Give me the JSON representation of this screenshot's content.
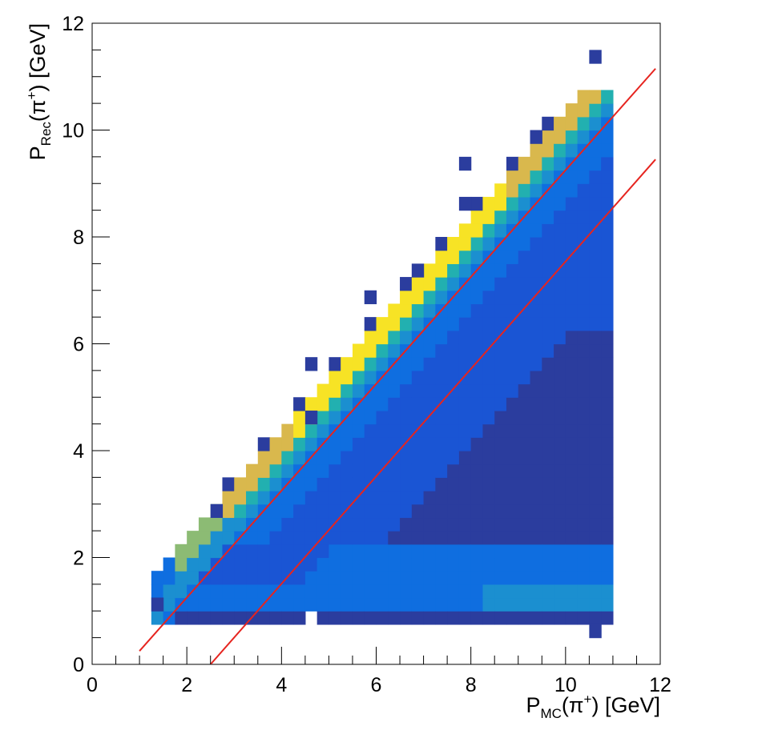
{
  "chart_data": {
    "type": "heatmap",
    "title": "",
    "xlabel": {
      "base": "P",
      "sub": "MC",
      "paren": "(π",
      "sup": "+",
      "tail": ") [GeV]"
    },
    "ylabel": {
      "base": "P",
      "sub": "Rec",
      "paren": "(π",
      "sup": "+",
      "tail": ") [GeV]"
    },
    "xlim": [
      0,
      12
    ],
    "ylim": [
      0,
      12
    ],
    "x_ticks": [
      "0",
      "2",
      "4",
      "6",
      "8",
      "10",
      "12"
    ],
    "y_ticks": [
      "0",
      "2",
      "4",
      "6",
      "8",
      "10",
      "12"
    ],
    "grid": false,
    "legend": "none",
    "bin_width": 0.25,
    "x_range_filled": [
      1.25,
      11.0
    ],
    "colors": {
      "level1": "#2b3d9e",
      "level2": "#1a55d4",
      "level3": "#0f6ee0",
      "level4": "#1b8fd0",
      "level5": "#22b0b0",
      "level6": "#8cbb74",
      "level7": "#d9b84d",
      "level8": "#f7e325",
      "line": "#e6241f",
      "frame": "#000000",
      "background": "#ffffff"
    },
    "lines": [
      {
        "x": [
          1.0,
          11.9
        ],
        "y": [
          0.25,
          11.15
        ]
      },
      {
        "x": [
          2.5,
          11.9
        ],
        "y": [
          0.0,
          9.45
        ]
      }
    ],
    "outlier_bins": [
      {
        "x": 1.25,
        "y": 1.0,
        "level": 1
      },
      {
        "x": 2.5,
        "y": 2.75,
        "level": 1
      },
      {
        "x": 4.5,
        "y": 4.5,
        "level": 1
      },
      {
        "x": 4.5,
        "y": 5.5,
        "level": 1
      },
      {
        "x": 5.75,
        "y": 6.75,
        "level": 1
      },
      {
        "x": 6.75,
        "y": 7.25,
        "level": 1
      },
      {
        "x": 7.75,
        "y": 8.5,
        "level": 1
      },
      {
        "x": 7.75,
        "y": 9.25,
        "level": 1
      },
      {
        "x": 9.25,
        "y": 9.75,
        "level": 1
      },
      {
        "x": 10.5,
        "y": 11.25,
        "level": 1
      },
      {
        "x": 10.5,
        "y": 0.5,
        "level": 1
      }
    ]
  }
}
